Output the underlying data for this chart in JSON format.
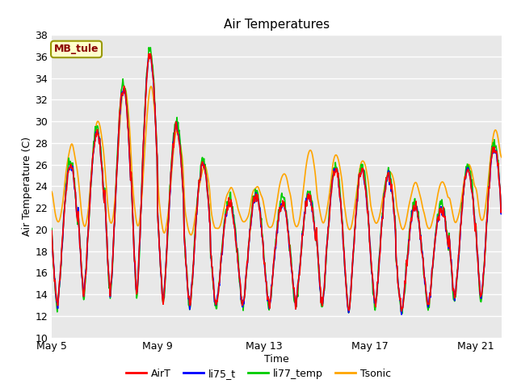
{
  "title": "Air Temperatures",
  "xlabel": "Time",
  "ylabel": "Air Temperature (C)",
  "ylim": [
    10,
    38
  ],
  "yticks": [
    10,
    12,
    14,
    16,
    18,
    20,
    22,
    24,
    26,
    28,
    30,
    32,
    34,
    36,
    38
  ],
  "xtick_labels": [
    "May 5",
    "May 9",
    "May 13",
    "May 17",
    "May 21"
  ],
  "annotation_text": "MB_tule",
  "annotation_color": "#8B0000",
  "annotation_bg": "#FFFFCC",
  "annotation_border": "#999900",
  "line_colors": {
    "AirT": "#FF0000",
    "li75_t": "#0000FF",
    "li77_temp": "#00CC00",
    "Tsonic": "#FFA500"
  },
  "bg_color": "#E8E8E8",
  "grid_color": "#FFFFFF",
  "n_days": 17,
  "pts_per_day": 48,
  "day_mins": [
    13.0,
    14.0,
    14.0,
    14.0,
    13.5,
    13.0,
    13.0,
    13.0,
    13.0,
    13.0,
    13.0,
    12.5,
    13.0,
    12.5,
    13.0,
    13.5,
    13.5
  ],
  "day_maxs": [
    26.0,
    29.0,
    33.0,
    36.2,
    29.5,
    26.0,
    22.5,
    23.0,
    22.5,
    23.0,
    25.5,
    25.5,
    25.0,
    22.0,
    22.0,
    25.5,
    27.5
  ],
  "tsonic_mins": [
    20.5,
    20.0,
    20.0,
    20.0,
    19.5,
    19.5,
    20.0,
    20.5,
    20.0,
    20.0,
    20.5,
    20.0,
    20.5,
    20.0,
    20.0,
    20.5,
    20.5
  ],
  "tsonic_maxs": [
    28.0,
    30.5,
    33.5,
    33.5,
    29.5,
    26.0,
    24.0,
    24.0,
    25.5,
    27.5,
    27.0,
    26.5,
    25.5,
    24.5,
    24.5,
    26.0,
    29.5
  ]
}
